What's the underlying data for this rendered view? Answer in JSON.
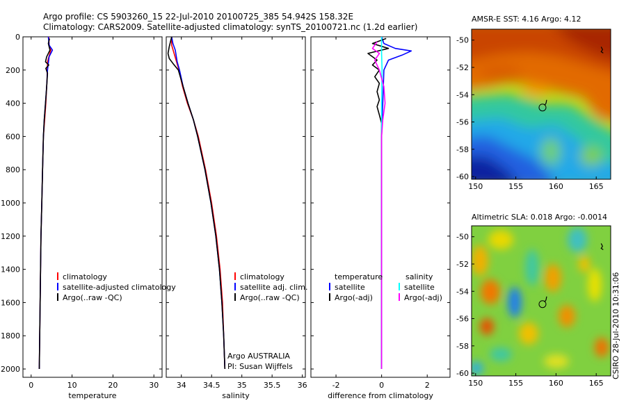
{
  "header": {
    "line1": "Argo profile: CS 5903260_15 22-Jul-2010 20100725_385 54.942S 158.32E",
    "line2": "Climatology: CARS2009. Satellite-adjusted climatology: synTS_20100721.nc (1.2d earlier)"
  },
  "colors": {
    "climatology": "#ff0000",
    "satellite": "#0000ff",
    "argo": "#000000",
    "sat_salinity": "#00ffff",
    "argo_salinity": "#ff00ff"
  },
  "chart_data": [
    {
      "id": "temperature",
      "type": "line",
      "xlabel": "temperature",
      "xlim": [
        -2,
        32
      ],
      "ylim": [
        2050,
        0
      ],
      "xticks": [
        0,
        10,
        20,
        30
      ],
      "xtick_labels": [
        "0",
        "10",
        "20",
        "30"
      ],
      "yticks": [
        0,
        200,
        400,
        600,
        800,
        1000,
        1200,
        1400,
        1600,
        1800,
        2000
      ],
      "ytick_labels": [
        "0",
        "200",
        "400",
        "600",
        "800",
        "1000",
        "1200",
        "1400",
        "1600",
        "1800",
        "2000"
      ],
      "legend": [
        "climatology",
        "satellite-adjusted climatology",
        "Argo(..raw -QC)"
      ],
      "series": [
        {
          "name": "climatology",
          "color": "#ff0000",
          "points": [
            [
              4.3,
              0
            ],
            [
              4.4,
              50
            ],
            [
              4.8,
              80
            ],
            [
              4.0,
              150
            ],
            [
              3.9,
              250
            ],
            [
              3.6,
              400
            ],
            [
              3.3,
              500
            ],
            [
              3.0,
              600
            ],
            [
              2.8,
              800
            ],
            [
              2.6,
              1000
            ],
            [
              2.4,
              1200
            ],
            [
              2.3,
              1400
            ],
            [
              2.2,
              1600
            ],
            [
              2.1,
              1800
            ],
            [
              2.0,
              2000
            ]
          ]
        },
        {
          "name": "satellite",
          "color": "#0000ff",
          "points": [
            [
              4.2,
              0
            ],
            [
              4.4,
              50
            ],
            [
              5.2,
              80
            ],
            [
              4.4,
              120
            ],
            [
              4.0,
              200
            ],
            [
              3.8,
              300
            ],
            [
              3.5,
              400
            ],
            [
              3.2,
              500
            ],
            [
              3.0,
              600
            ],
            [
              2.8,
              800
            ],
            [
              2.6,
              1000
            ],
            [
              2.4,
              1200
            ],
            [
              2.3,
              1400
            ],
            [
              2.2,
              1600
            ],
            [
              2.1,
              1800
            ],
            [
              2.0,
              2000
            ]
          ]
        },
        {
          "name": "Argo",
          "color": "#000000",
          "points": [
            [
              4.5,
              10
            ],
            [
              4.2,
              40
            ],
            [
              4.6,
              80
            ],
            [
              3.8,
              120
            ],
            [
              3.5,
              150
            ],
            [
              4.3,
              170
            ],
            [
              3.6,
              190
            ],
            [
              4.0,
              220
            ],
            [
              3.8,
              300
            ],
            [
              3.5,
              400
            ],
            [
              3.2,
              500
            ],
            [
              3.0,
              600
            ],
            [
              2.8,
              800
            ],
            [
              2.6,
              1000
            ],
            [
              2.4,
              1200
            ],
            [
              2.3,
              1400
            ],
            [
              2.2,
              1600
            ],
            [
              2.1,
              1800
            ],
            [
              2.0,
              2000
            ]
          ]
        }
      ]
    },
    {
      "id": "salinity",
      "type": "line",
      "xlabel": "salinity",
      "xlim": [
        33.75,
        36.05
      ],
      "ylim": [
        2050,
        0
      ],
      "xticks": [
        34,
        34.5,
        35,
        35.5,
        36
      ],
      "xtick_labels": [
        "34",
        "34.5",
        "35",
        "35.5",
        "36"
      ],
      "legend": [
        "climatology",
        "satellite adj. clim.",
        "Argo(..raw -QC)"
      ],
      "note_lines": [
        "Argo AUSTRALIA",
        "PI: Susan Wijffels"
      ],
      "series": [
        {
          "name": "climatology",
          "color": "#ff0000",
          "points": [
            [
              33.84,
              0
            ],
            [
              33.84,
              50
            ],
            [
              33.88,
              100
            ],
            [
              33.92,
              150
            ],
            [
              33.96,
              200
            ],
            [
              34.02,
              300
            ],
            [
              34.1,
              400
            ],
            [
              34.2,
              500
            ],
            [
              34.28,
              600
            ],
            [
              34.4,
              800
            ],
            [
              34.5,
              1000
            ],
            [
              34.58,
              1200
            ],
            [
              34.64,
              1400
            ],
            [
              34.68,
              1600
            ],
            [
              34.7,
              1800
            ],
            [
              34.72,
              2000
            ]
          ]
        },
        {
          "name": "satellite",
          "color": "#0000ff",
          "points": [
            [
              33.84,
              0
            ],
            [
              33.86,
              40
            ],
            [
              33.9,
              80
            ],
            [
              33.93,
              150
            ],
            [
              33.97,
              200
            ],
            [
              34.03,
              300
            ],
            [
              34.11,
              400
            ],
            [
              34.2,
              500
            ],
            [
              34.27,
              600
            ],
            [
              34.39,
              800
            ],
            [
              34.49,
              1000
            ],
            [
              34.57,
              1200
            ],
            [
              34.63,
              1400
            ],
            [
              34.67,
              1600
            ],
            [
              34.7,
              1800
            ],
            [
              34.72,
              2000
            ]
          ]
        },
        {
          "name": "Argo",
          "color": "#000000",
          "points": [
            [
              33.84,
              0
            ],
            [
              33.8,
              60
            ],
            [
              33.78,
              100
            ],
            [
              33.8,
              130
            ],
            [
              33.86,
              160
            ],
            [
              33.95,
              200
            ],
            [
              34.03,
              300
            ],
            [
              34.11,
              400
            ],
            [
              34.2,
              500
            ],
            [
              34.27,
              600
            ],
            [
              34.39,
              800
            ],
            [
              34.49,
              1000
            ],
            [
              34.57,
              1200
            ],
            [
              34.63,
              1400
            ],
            [
              34.67,
              1600
            ],
            [
              34.7,
              1800
            ],
            [
              34.72,
              2000
            ]
          ]
        }
      ]
    },
    {
      "id": "difference",
      "type": "line",
      "xlabel": "difference from climatology",
      "xlim": [
        -3.1,
        3.0
      ],
      "ylim": [
        2050,
        0
      ],
      "xticks": [
        -2,
        0,
        2
      ],
      "xtick_labels": [
        "-2",
        "0",
        "2"
      ],
      "legend_headers": [
        "temperature",
        "salinity"
      ],
      "legend": [
        "satellite",
        "Argo(-adj)",
        "satellite",
        "Argo(-adj)"
      ],
      "series": [
        {
          "name": "temperature satellite",
          "color": "#0000ff",
          "points": [
            [
              0,
              0
            ],
            [
              0.1,
              40
            ],
            [
              0.6,
              70
            ],
            [
              1.3,
              85
            ],
            [
              0.9,
              110
            ],
            [
              0.3,
              140
            ],
            [
              0.1,
              200
            ],
            [
              0.05,
              400
            ],
            [
              0.0,
              600
            ],
            [
              0.0,
              1000
            ],
            [
              0.0,
              1500
            ],
            [
              0.0,
              2000
            ]
          ]
        },
        {
          "name": "temperature Argo(-adj)",
          "color": "#000000",
          "points": [
            [
              0.2,
              10
            ],
            [
              -0.4,
              40
            ],
            [
              0.3,
              70
            ],
            [
              -0.6,
              100
            ],
            [
              -0.2,
              140
            ],
            [
              -0.4,
              170
            ],
            [
              -0.1,
              200
            ],
            [
              -0.3,
              240
            ],
            [
              -0.1,
              280
            ],
            [
              -0.2,
              330
            ],
            [
              -0.1,
              380
            ],
            [
              -0.2,
              420
            ],
            [
              -0.1,
              470
            ],
            [
              0.0,
              520
            ],
            [
              0.0,
              600
            ],
            [
              0.0,
              1000
            ],
            [
              0.0,
              1500
            ],
            [
              0.0,
              2000
            ]
          ]
        },
        {
          "name": "salinity satellite",
          "color": "#00ffff",
          "points": [
            [
              0,
              0
            ],
            [
              0.0,
              100
            ],
            [
              0.02,
              200
            ],
            [
              0.0,
              400
            ],
            [
              0.0,
              600
            ],
            [
              0.0,
              1000
            ],
            [
              0.0,
              1500
            ],
            [
              0.0,
              2000
            ]
          ]
        },
        {
          "name": "salinity Argo(-adj)",
          "color": "#ff00ff",
          "points": [
            [
              -0.2,
              30
            ],
            [
              -0.4,
              70
            ],
            [
              -0.1,
              100
            ],
            [
              -0.3,
              140
            ],
            [
              -0.1,
              200
            ],
            [
              0.1,
              300
            ],
            [
              0.15,
              400
            ],
            [
              0.05,
              500
            ],
            [
              0.0,
              600
            ],
            [
              0.0,
              1000
            ],
            [
              0.0,
              1500
            ],
            [
              0.0,
              2000
            ]
          ]
        }
      ]
    },
    {
      "id": "sst_map",
      "type": "heatmap",
      "title": "AMSR-E SST: 4.16 Argo: 4.12",
      "xlim": [
        149.5,
        166.8
      ],
      "ylim": [
        -60.2,
        -49.2
      ],
      "xticks": [
        150,
        155,
        160,
        165
      ],
      "xtick_labels": [
        "150",
        "155",
        "160",
        "165"
      ],
      "yticks": [
        -50,
        -52,
        -54,
        -56,
        -58,
        -60
      ],
      "ytick_labels": [
        "-50",
        "-52",
        "-54",
        "-56",
        "-58",
        "-60"
      ],
      "marker": {
        "lon": 158.32,
        "lat": -54.94
      },
      "secondary_marker": {
        "lon": 165.7,
        "lat": -50.8
      }
    },
    {
      "id": "sla_map",
      "type": "heatmap",
      "title": "Altimetric SLA: 0.018 Argo: -0.0014",
      "xlim": [
        149.5,
        166.8
      ],
      "ylim": [
        -60.2,
        -49.2
      ],
      "xticks": [
        150,
        155,
        160,
        165
      ],
      "xtick_labels": [
        "150",
        "155",
        "160",
        "165"
      ],
      "yticks": [
        -50,
        -52,
        -54,
        -56,
        -58,
        -60
      ],
      "ytick_labels": [
        "-50",
        "-52",
        "-54",
        "-56",
        "-58",
        "-60"
      ],
      "marker": {
        "lon": 158.32,
        "lat": -54.94
      },
      "secondary_marker": {
        "lon": 165.7,
        "lat": -50.8
      }
    }
  ],
  "footer_stamp": "CSIRO 28-Jul-2010 10:31:06"
}
